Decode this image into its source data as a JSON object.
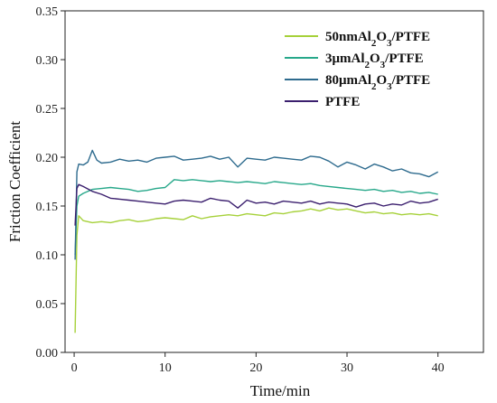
{
  "chart_data": {
    "type": "line",
    "xlabel": "Time/min",
    "ylabel": "Friction Coefficient",
    "xlim": [
      -1,
      45
    ],
    "ylim": [
      0.0,
      0.35
    ],
    "xticks": [
      0,
      10,
      20,
      30,
      40
    ],
    "yticks": [
      0.0,
      0.05,
      0.1,
      0.15,
      0.2,
      0.25,
      0.3,
      0.35
    ],
    "xtick_labels": [
      "0",
      "10",
      "20",
      "30",
      "40"
    ],
    "ytick_labels": [
      "0.00",
      "0.05",
      "0.10",
      "0.15",
      "0.20",
      "0.25",
      "0.30",
      "0.35"
    ],
    "grid": false,
    "legend_position": "top-right",
    "series": [
      {
        "name": "50nmAl2O3/PTFE",
        "legend_main": "50nmAl",
        "legend_sub1": "2",
        "legend_mid": "O",
        "legend_sub2": "3",
        "legend_tail": "/PTFE",
        "color": "#a6d13a",
        "x": [
          0.1,
          0.3,
          0.5,
          1,
          2,
          3,
          4,
          5,
          6,
          7,
          8,
          9,
          10,
          11,
          12,
          13,
          14,
          15,
          16,
          17,
          18,
          19,
          20,
          21,
          22,
          23,
          24,
          25,
          26,
          27,
          28,
          29,
          30,
          31,
          32,
          33,
          34,
          35,
          36,
          37,
          38,
          39,
          40
        ],
        "y": [
          0.02,
          0.12,
          0.14,
          0.135,
          0.133,
          0.134,
          0.133,
          0.135,
          0.136,
          0.134,
          0.135,
          0.137,
          0.138,
          0.137,
          0.136,
          0.14,
          0.137,
          0.139,
          0.14,
          0.141,
          0.14,
          0.142,
          0.141,
          0.14,
          0.143,
          0.142,
          0.144,
          0.145,
          0.147,
          0.145,
          0.148,
          0.146,
          0.147,
          0.145,
          0.143,
          0.144,
          0.142,
          0.143,
          0.141,
          0.142,
          0.141,
          0.142,
          0.14
        ]
      },
      {
        "name": "3μmAl2O3/PTFE",
        "legend_main": "3μmAl",
        "legend_sub1": "2",
        "legend_mid": "O",
        "legend_sub2": "3",
        "legend_tail": "/PTFE",
        "color": "#27a88a",
        "x": [
          0.1,
          0.3,
          0.5,
          1,
          2,
          3,
          4,
          5,
          6,
          7,
          8,
          9,
          10,
          11,
          12,
          13,
          14,
          15,
          16,
          17,
          18,
          19,
          20,
          21,
          22,
          23,
          24,
          25,
          26,
          27,
          28,
          29,
          30,
          31,
          32,
          33,
          34,
          35,
          36,
          37,
          38,
          39,
          40
        ],
        "y": [
          0.1,
          0.15,
          0.16,
          0.163,
          0.167,
          0.168,
          0.169,
          0.168,
          0.167,
          0.165,
          0.166,
          0.168,
          0.169,
          0.177,
          0.176,
          0.177,
          0.176,
          0.175,
          0.176,
          0.175,
          0.174,
          0.175,
          0.174,
          0.173,
          0.175,
          0.174,
          0.173,
          0.172,
          0.173,
          0.171,
          0.17,
          0.169,
          0.168,
          0.167,
          0.166,
          0.167,
          0.165,
          0.166,
          0.164,
          0.165,
          0.163,
          0.164,
          0.162
        ]
      },
      {
        "name": "80μmAl2O3/PTFE",
        "legend_main": "80μmAl",
        "legend_sub1": "2",
        "legend_mid": "O",
        "legend_sub2": "3",
        "legend_tail": "/PTFE",
        "color": "#2e6b8e",
        "x": [
          0.1,
          0.3,
          0.5,
          1,
          1.5,
          2,
          2.5,
          3,
          4,
          5,
          6,
          7,
          8,
          9,
          10,
          11,
          12,
          13,
          14,
          15,
          16,
          17,
          18,
          19,
          20,
          21,
          22,
          23,
          24,
          25,
          26,
          27,
          28,
          29,
          30,
          31,
          32,
          33,
          34,
          35,
          36,
          37,
          38,
          39,
          40
        ],
        "y": [
          0.095,
          0.185,
          0.193,
          0.192,
          0.195,
          0.207,
          0.197,
          0.194,
          0.195,
          0.198,
          0.196,
          0.197,
          0.195,
          0.199,
          0.2,
          0.201,
          0.197,
          0.198,
          0.199,
          0.201,
          0.198,
          0.2,
          0.19,
          0.199,
          0.198,
          0.197,
          0.2,
          0.199,
          0.198,
          0.197,
          0.201,
          0.2,
          0.196,
          0.19,
          0.195,
          0.192,
          0.188,
          0.193,
          0.19,
          0.186,
          0.188,
          0.184,
          0.183,
          0.18,
          0.185
        ]
      },
      {
        "name": "PTFE",
        "legend_main": "PTFE",
        "legend_sub1": "",
        "legend_mid": "",
        "legend_sub2": "",
        "legend_tail": "",
        "color": "#3b1f6e",
        "x": [
          0.1,
          0.3,
          0.5,
          1,
          2,
          3,
          4,
          5,
          6,
          7,
          8,
          9,
          10,
          11,
          12,
          13,
          14,
          15,
          16,
          17,
          18,
          19,
          20,
          21,
          22,
          23,
          24,
          25,
          26,
          27,
          28,
          29,
          30,
          31,
          32,
          33,
          34,
          35,
          36,
          37,
          38,
          39,
          40
        ],
        "y": [
          0.13,
          0.168,
          0.172,
          0.17,
          0.165,
          0.162,
          0.158,
          0.157,
          0.156,
          0.155,
          0.154,
          0.153,
          0.152,
          0.155,
          0.156,
          0.155,
          0.154,
          0.158,
          0.156,
          0.155,
          0.148,
          0.156,
          0.153,
          0.154,
          0.152,
          0.155,
          0.154,
          0.153,
          0.155,
          0.152,
          0.154,
          0.153,
          0.152,
          0.149,
          0.152,
          0.153,
          0.15,
          0.152,
          0.151,
          0.155,
          0.153,
          0.154,
          0.157
        ]
      }
    ]
  }
}
